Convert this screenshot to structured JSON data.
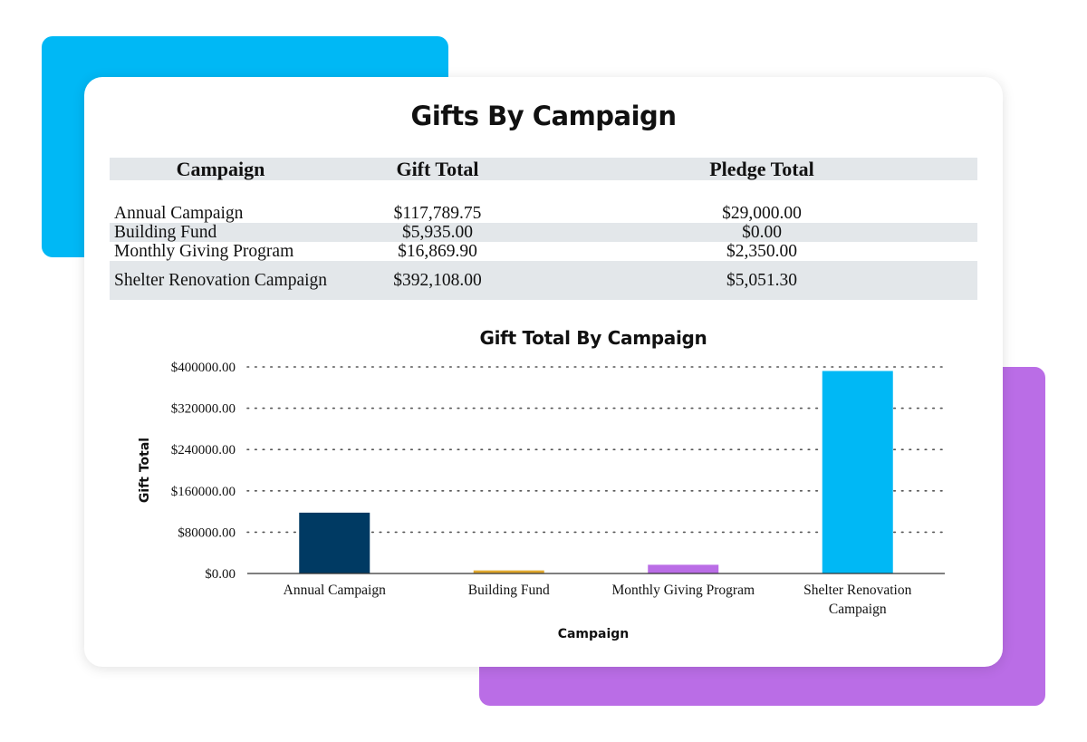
{
  "report": {
    "title": "Gifts By Campaign",
    "table": {
      "headers": [
        "Campaign",
        "Gift Total",
        "Pledge Total"
      ],
      "rows": [
        {
          "campaign": "Annual Campaign",
          "gift_total": "$117,789.75",
          "pledge_total": "$29,000.00"
        },
        {
          "campaign": "Building Fund",
          "gift_total": "$5,935.00",
          "pledge_total": "$0.00"
        },
        {
          "campaign": "Monthly Giving Program",
          "gift_total": "$16,869.90",
          "pledge_total": "$2,350.00"
        },
        {
          "campaign": "Shelter Renovation Campaign",
          "gift_total": "$392,108.00",
          "pledge_total": "$5,051.30"
        }
      ]
    }
  },
  "chart_data": {
    "type": "bar",
    "title": "Gift Total By Campaign",
    "xlabel": "Campaign",
    "ylabel": "Gift Total",
    "categories": [
      "Annual Campaign",
      "Building Fund",
      "Monthly Giving Program",
      "Shelter Renovation Campaign"
    ],
    "category_label_lines": [
      [
        "Annual Campaign"
      ],
      [
        "Building Fund"
      ],
      [
        "Monthly Giving Program"
      ],
      [
        "Shelter Renovation",
        "Campaign"
      ]
    ],
    "values": [
      117789.75,
      5935.0,
      16869.9,
      392108.0
    ],
    "bar_colors": [
      "#003a63",
      "#e0a82e",
      "#ba6de6",
      "#00b8f5"
    ],
    "ylim": [
      0,
      400000
    ],
    "yticks": [
      0,
      80000,
      160000,
      240000,
      320000,
      400000
    ],
    "ytick_labels": [
      "$0.00",
      "$80000.00",
      "$160000.00",
      "$240000.00",
      "$320000.00",
      "$400000.00"
    ],
    "grid": "horizontal dotted",
    "legend": "none"
  },
  "colors": {
    "accent_blue": "#00b8f5",
    "accent_purple": "#ba6de6",
    "table_header_bg": "#e3e7ea"
  }
}
